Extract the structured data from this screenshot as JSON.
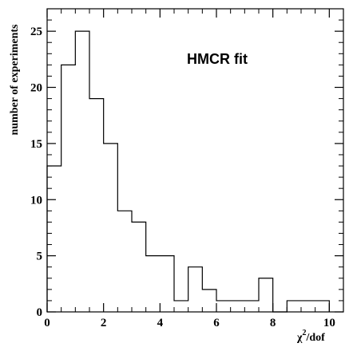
{
  "chart_data": {
    "type": "bar",
    "histogram": true,
    "bin_width": 0.5,
    "bin_edges": [
      0,
      0.5,
      1.0,
      1.5,
      2.0,
      2.5,
      3.0,
      3.5,
      4.0,
      4.5,
      5.0,
      5.5,
      6.0,
      6.5,
      7.0,
      7.5,
      8.0,
      8.5,
      9.0,
      9.5,
      10.0
    ],
    "values": [
      13,
      22,
      25,
      19,
      15,
      9,
      8,
      5,
      5,
      1,
      4,
      2,
      1,
      1,
      1,
      3,
      0,
      1,
      1,
      1
    ],
    "xlim": [
      0,
      10.5
    ],
    "ylim": [
      0,
      27
    ],
    "x_ticks": [
      0,
      2,
      4,
      6,
      8,
      10
    ],
    "y_ticks": [
      0,
      5,
      10,
      15,
      20,
      25
    ],
    "ylabel": "number of experiments",
    "xlabel_main": "χ",
    "xlabel_sup": "2",
    "xlabel_rest": "/dof",
    "annotation": "HMCR fit",
    "grid": false,
    "line_color": "#000000"
  }
}
